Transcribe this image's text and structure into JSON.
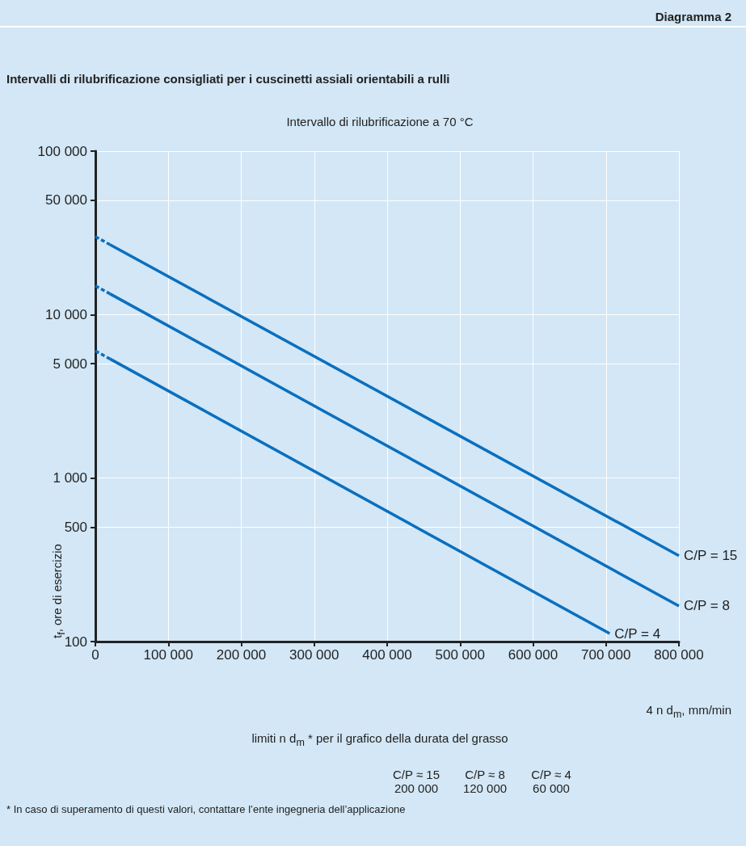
{
  "chart_data": {
    "type": "line",
    "title": "Intervalli di rilubrificazione consigliati per i cuscinetti assiali orientabili a rulli",
    "subtitle": "Intervallo di rilubrificazione a 70 °C",
    "xlabel": "4 n d$_{m}$, mm/min",
    "ylabel": "t$_{f}$, ore di esercizio",
    "annotations": [
      "Diagramma 2",
      "limiti n d$_{m}$ * per il grafico della durata del grasso",
      "C/P ≈ 15\n200 000",
      "C/P ≈ 8\n120 000",
      "C/P ≈ 4\n60 000",
      "* In caso di superamento di questi valori, contattare l’ente ingegneria dell’applicazione"
    ],
    "series": [
      {
        "color": "#0a6fbf",
        "line_style": "dashed",
        "x": [
          0,
          20000
        ],
        "values": [
          30000,
          26800
        ]
      },
      {
        "name": "C/P = 15",
        "color": "#0a6fbf",
        "line_style": "solid",
        "x": [
          20000,
          800000
        ],
        "values": [
          26800,
          335
        ]
      },
      {
        "color": "#0a6fbf",
        "line_style": "dashed",
        "x": [
          0,
          20000
        ],
        "values": [
          15000,
          13400
        ]
      },
      {
        "name": "C/P = 8",
        "color": "#0a6fbf",
        "line_style": "solid",
        "x": [
          20000,
          800000
        ],
        "values": [
          13400,
          165
        ]
      },
      {
        "color": "#0a6fbf",
        "line_style": "dashed",
        "x": [
          0,
          20000
        ],
        "values": [
          6000,
          5360
        ]
      },
      {
        "name": "C/P = 4",
        "color": "#0a6fbf",
        "line_style": "solid",
        "x": [
          20000,
          705000
        ],
        "values": [
          5360,
          112
        ]
      }
    ],
    "xlim": [
      0,
      800000
    ],
    "xticks": [
      0,
      {
        "value": 100000,
        "label": "100 000"
      },
      {
        "value": 200000,
        "label": "200 000"
      },
      {
        "value": 300000,
        "label": "300 000"
      },
      {
        "value": 400000,
        "label": "400 000"
      },
      {
        "value": 500000,
        "label": "500 000"
      },
      {
        "value": 600000,
        "label": "600 000"
      },
      {
        "value": 700000,
        "label": "700 000"
      },
      {
        "value": 800000,
        "label": "800 000"
      }
    ],
    "ylim": [
      100,
      100000
    ],
    "yticks": [
      100,
      500,
      {
        "value": 1000,
        "label": "1 000"
      },
      {
        "value": 5000,
        "label": "5 000"
      },
      {
        "value": 10000,
        "label": "10 000"
      },
      {
        "value": 50000,
        "label": "50 000"
      },
      {
        "value": 100000,
        "label": "100 000"
      }
    ],
    "log": "y",
    "grid": true,
    "legend": false,
    "marker": "none"
  }
}
